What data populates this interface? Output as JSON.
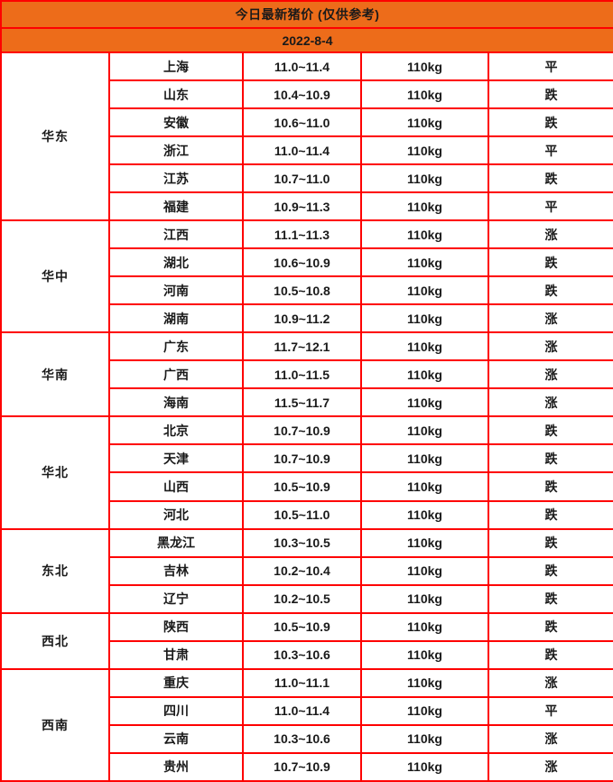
{
  "colors": {
    "header_bg": "#ed6c1a",
    "border": "#fe0000",
    "text": "#1a1a1a",
    "trend_up": "#fc4452",
    "trend_down": "#3fd42b",
    "trend_flat": "#1a1a1a"
  },
  "chart_data": {
    "type": "table",
    "title": "今日最新猪价 (仅供参考)",
    "date": "2022-8-4",
    "weight_unit": "110kg",
    "trend_legend": {
      "up": "涨",
      "down": "跌",
      "flat": "平"
    },
    "regions": [
      {
        "name": "华东",
        "rows": [
          {
            "province": "上海",
            "price": "11.0~11.4",
            "weight": "110kg",
            "trend": "平",
            "trend_type": "flat"
          },
          {
            "province": "山东",
            "price": "10.4~10.9",
            "weight": "110kg",
            "trend": "跌",
            "trend_type": "down"
          },
          {
            "province": "安徽",
            "price": "10.6~11.0",
            "weight": "110kg",
            "trend": "跌",
            "trend_type": "down"
          },
          {
            "province": "浙江",
            "price": "11.0~11.4",
            "weight": "110kg",
            "trend": "平",
            "trend_type": "flat"
          },
          {
            "province": "江苏",
            "price": "10.7~11.0",
            "weight": "110kg",
            "trend": "跌",
            "trend_type": "down"
          },
          {
            "province": "福建",
            "price": "10.9~11.3",
            "weight": "110kg",
            "trend": "平",
            "trend_type": "flat"
          }
        ]
      },
      {
        "name": "华中",
        "rows": [
          {
            "province": "江西",
            "price": "11.1~11.3",
            "weight": "110kg",
            "trend": "涨",
            "trend_type": "up"
          },
          {
            "province": "湖北",
            "price": "10.6~10.9",
            "weight": "110kg",
            "trend": "跌",
            "trend_type": "down"
          },
          {
            "province": "河南",
            "price": "10.5~10.8",
            "weight": "110kg",
            "trend": "跌",
            "trend_type": "down"
          },
          {
            "province": "湖南",
            "price": "10.9~11.2",
            "weight": "110kg",
            "trend": "涨",
            "trend_type": "up"
          }
        ]
      },
      {
        "name": "华南",
        "rows": [
          {
            "province": "广东",
            "price": "11.7~12.1",
            "weight": "110kg",
            "trend": "涨",
            "trend_type": "up"
          },
          {
            "province": "广西",
            "price": "11.0~11.5",
            "weight": "110kg",
            "trend": "涨",
            "trend_type": "up"
          },
          {
            "province": "海南",
            "price": "11.5~11.7",
            "weight": "110kg",
            "trend": "涨",
            "trend_type": "up"
          }
        ]
      },
      {
        "name": "华北",
        "rows": [
          {
            "province": "北京",
            "price": "10.7~10.9",
            "weight": "110kg",
            "trend": "跌",
            "trend_type": "down"
          },
          {
            "province": "天津",
            "price": "10.7~10.9",
            "weight": "110kg",
            "trend": "跌",
            "trend_type": "down"
          },
          {
            "province": "山西",
            "price": "10.5~10.9",
            "weight": "110kg",
            "trend": "跌",
            "trend_type": "down"
          },
          {
            "province": "河北",
            "price": "10.5~11.0",
            "weight": "110kg",
            "trend": "跌",
            "trend_type": "down"
          }
        ]
      },
      {
        "name": "东北",
        "rows": [
          {
            "province": "黑龙江",
            "price": "10.3~10.5",
            "weight": "110kg",
            "trend": "跌",
            "trend_type": "down"
          },
          {
            "province": "吉林",
            "price": "10.2~10.4",
            "weight": "110kg",
            "trend": "跌",
            "trend_type": "down"
          },
          {
            "province": "辽宁",
            "price": "10.2~10.5",
            "weight": "110kg",
            "trend": "跌",
            "trend_type": "down"
          }
        ]
      },
      {
        "name": "西北",
        "rows": [
          {
            "province": "陕西",
            "price": "10.5~10.9",
            "weight": "110kg",
            "trend": "跌",
            "trend_type": "down"
          },
          {
            "province": "甘肃",
            "price": "10.3~10.6",
            "weight": "110kg",
            "trend": "跌",
            "trend_type": "down"
          }
        ]
      },
      {
        "name": "西南",
        "rows": [
          {
            "province": "重庆",
            "price": "11.0~11.1",
            "weight": "110kg",
            "trend": "涨",
            "trend_type": "up"
          },
          {
            "province": "四川",
            "price": "11.0~11.4",
            "weight": "110kg",
            "trend": "平",
            "trend_type": "flat"
          },
          {
            "province": "云南",
            "price": "10.3~10.6",
            "weight": "110kg",
            "trend": "涨",
            "trend_type": "up"
          },
          {
            "province": "贵州",
            "price": "10.7~10.9",
            "weight": "110kg",
            "trend": "涨",
            "trend_type": "up"
          }
        ]
      }
    ]
  }
}
